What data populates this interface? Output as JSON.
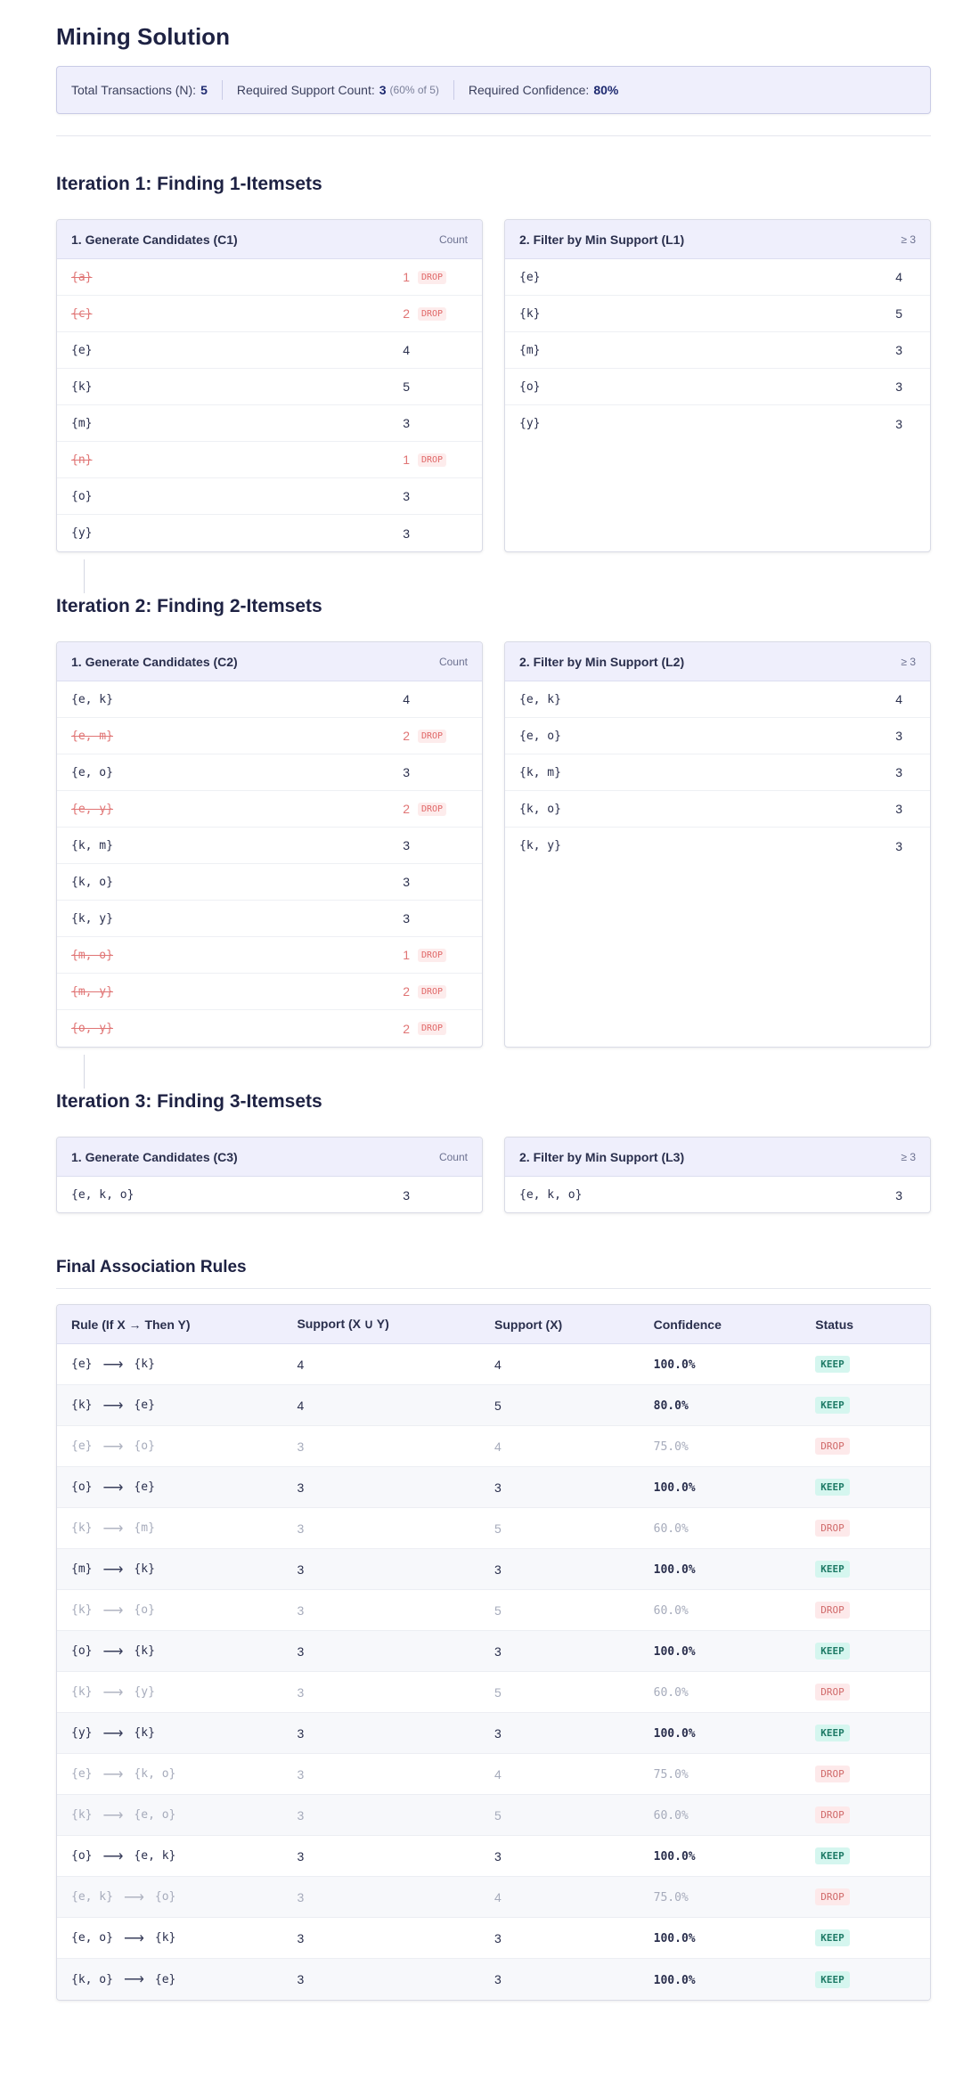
{
  "title": "Mining Solution",
  "summary": {
    "total_label": "Total Transactions (N):",
    "total_value": "5",
    "support_label": "Required Support Count:",
    "support_value": "3",
    "support_note": "(60% of 5)",
    "confidence_label": "Required Confidence:",
    "confidence_value": "80%"
  },
  "iterations": [
    {
      "heading": "Iteration 1: Finding 1-Itemsets",
      "candidates_title": "1. Generate Candidates (C1)",
      "candidates_meta": "Count",
      "filtered_title": "2. Filter by Min Support (L1)",
      "filtered_meta": "≥ 3",
      "candidates": [
        {
          "set": "{a}",
          "count": "1",
          "dropped": true
        },
        {
          "set": "{c}",
          "count": "2",
          "dropped": true
        },
        {
          "set": "{e}",
          "count": "4",
          "dropped": false
        },
        {
          "set": "{k}",
          "count": "5",
          "dropped": false
        },
        {
          "set": "{m}",
          "count": "3",
          "dropped": false
        },
        {
          "set": "{n}",
          "count": "1",
          "dropped": true
        },
        {
          "set": "{o}",
          "count": "3",
          "dropped": false
        },
        {
          "set": "{y}",
          "count": "3",
          "dropped": false
        }
      ],
      "filtered": [
        {
          "set": "{e}",
          "count": "4"
        },
        {
          "set": "{k}",
          "count": "5"
        },
        {
          "set": "{m}",
          "count": "3"
        },
        {
          "set": "{o}",
          "count": "3"
        },
        {
          "set": "{y}",
          "count": "3"
        }
      ]
    },
    {
      "heading": "Iteration 2: Finding 2-Itemsets",
      "candidates_title": "1. Generate Candidates (C2)",
      "candidates_meta": "Count",
      "filtered_title": "2. Filter by Min Support (L2)",
      "filtered_meta": "≥ 3",
      "candidates": [
        {
          "set": "{e, k}",
          "count": "4",
          "dropped": false
        },
        {
          "set": "{e, m}",
          "count": "2",
          "dropped": true
        },
        {
          "set": "{e, o}",
          "count": "3",
          "dropped": false
        },
        {
          "set": "{e, y}",
          "count": "2",
          "dropped": true
        },
        {
          "set": "{k, m}",
          "count": "3",
          "dropped": false
        },
        {
          "set": "{k, o}",
          "count": "3",
          "dropped": false
        },
        {
          "set": "{k, y}",
          "count": "3",
          "dropped": false
        },
        {
          "set": "{m, o}",
          "count": "1",
          "dropped": true
        },
        {
          "set": "{m, y}",
          "count": "2",
          "dropped": true
        },
        {
          "set": "{o, y}",
          "count": "2",
          "dropped": true
        }
      ],
      "filtered": [
        {
          "set": "{e, k}",
          "count": "4"
        },
        {
          "set": "{e, o}",
          "count": "3"
        },
        {
          "set": "{k, m}",
          "count": "3"
        },
        {
          "set": "{k, o}",
          "count": "3"
        },
        {
          "set": "{k, y}",
          "count": "3"
        }
      ]
    },
    {
      "heading": "Iteration 3: Finding 3-Itemsets",
      "candidates_title": "1. Generate Candidates (C3)",
      "candidates_meta": "Count",
      "filtered_title": "2. Filter by Min Support (L3)",
      "filtered_meta": "≥ 3",
      "candidates": [
        {
          "set": "{e, k, o}",
          "count": "3",
          "dropped": false
        }
      ],
      "filtered": [
        {
          "set": "{e, k, o}",
          "count": "3"
        }
      ]
    }
  ],
  "drop_label": "DROP",
  "rules": {
    "heading": "Final Association Rules",
    "columns": [
      "Rule (If X → Then Y)",
      "Support (X ∪ Y)",
      "Support (X)",
      "Confidence",
      "Status"
    ],
    "arrow": "⟶",
    "rows": [
      {
        "x": "{e}",
        "y": "{k}",
        "sxy": "4",
        "sx": "4",
        "conf": "100.0%",
        "status": "KEEP"
      },
      {
        "x": "{k}",
        "y": "{e}",
        "sxy": "4",
        "sx": "5",
        "conf": "80.0%",
        "status": "KEEP"
      },
      {
        "x": "{e}",
        "y": "{o}",
        "sxy": "3",
        "sx": "4",
        "conf": "75.0%",
        "status": "DROP"
      },
      {
        "x": "{o}",
        "y": "{e}",
        "sxy": "3",
        "sx": "3",
        "conf": "100.0%",
        "status": "KEEP"
      },
      {
        "x": "{k}",
        "y": "{m}",
        "sxy": "3",
        "sx": "5",
        "conf": "60.0%",
        "status": "DROP"
      },
      {
        "x": "{m}",
        "y": "{k}",
        "sxy": "3",
        "sx": "3",
        "conf": "100.0%",
        "status": "KEEP"
      },
      {
        "x": "{k}",
        "y": "{o}",
        "sxy": "3",
        "sx": "5",
        "conf": "60.0%",
        "status": "DROP"
      },
      {
        "x": "{o}",
        "y": "{k}",
        "sxy": "3",
        "sx": "3",
        "conf": "100.0%",
        "status": "KEEP"
      },
      {
        "x": "{k}",
        "y": "{y}",
        "sxy": "3",
        "sx": "5",
        "conf": "60.0%",
        "status": "DROP"
      },
      {
        "x": "{y}",
        "y": "{k}",
        "sxy": "3",
        "sx": "3",
        "conf": "100.0%",
        "status": "KEEP"
      },
      {
        "x": "{e}",
        "y": "{k, o}",
        "sxy": "3",
        "sx": "4",
        "conf": "75.0%",
        "status": "DROP"
      },
      {
        "x": "{k}",
        "y": "{e, o}",
        "sxy": "3",
        "sx": "5",
        "conf": "60.0%",
        "status": "DROP"
      },
      {
        "x": "{o}",
        "y": "{e, k}",
        "sxy": "3",
        "sx": "3",
        "conf": "100.0%",
        "status": "KEEP"
      },
      {
        "x": "{e, k}",
        "y": "{o}",
        "sxy": "3",
        "sx": "4",
        "conf": "75.0%",
        "status": "DROP"
      },
      {
        "x": "{e, o}",
        "y": "{k}",
        "sxy": "3",
        "sx": "3",
        "conf": "100.0%",
        "status": "KEEP"
      },
      {
        "x": "{k, o}",
        "y": "{e}",
        "sxy": "3",
        "sx": "3",
        "conf": "100.0%",
        "status": "KEEP"
      }
    ]
  }
}
